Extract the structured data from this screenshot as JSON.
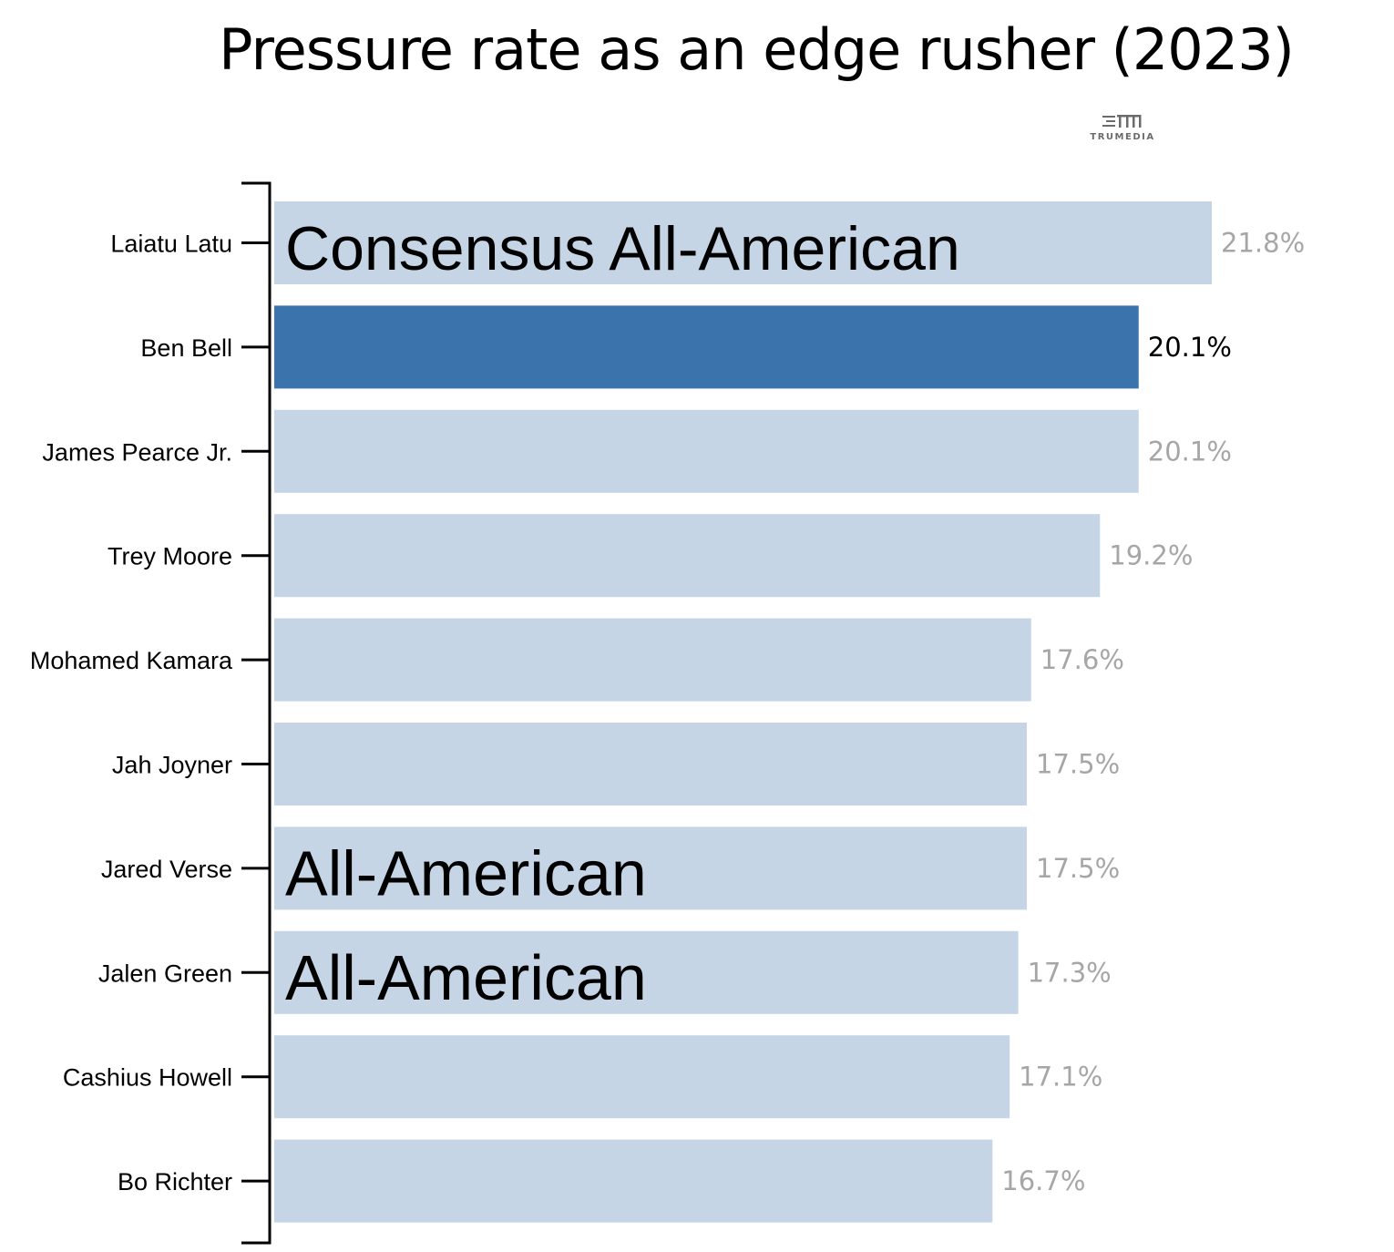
{
  "chart_data": {
    "type": "bar",
    "orientation": "horizontal",
    "title": "Pressure rate as an edge rusher (2023)",
    "source_logo": "TRUMEDIA",
    "categories": [
      "Laiatu Latu",
      "Ben Bell",
      "James Pearce Jr.",
      "Trey Moore",
      "Mohamed Kamara",
      "Jah Joyner",
      "Jared Verse",
      "Jalen Green",
      "Cashius Howell",
      "Bo Richter"
    ],
    "values": [
      21.8,
      20.1,
      20.1,
      19.2,
      17.6,
      17.5,
      17.5,
      17.3,
      17.1,
      16.7
    ],
    "value_labels": [
      "21.8%",
      "20.1%",
      "20.1%",
      "19.2%",
      "17.6%",
      "17.5%",
      "17.5%",
      "17.3%",
      "17.1%",
      "16.7%"
    ],
    "annotations": [
      "Consensus All-American",
      "",
      "",
      "",
      "",
      "",
      "All-American",
      "All-American",
      "",
      ""
    ],
    "highlight": "Ben Bell",
    "xlim": [
      0,
      21.8
    ],
    "grid": false,
    "legend": "none",
    "colors": {
      "bar": "#c5d5e6",
      "highlight": "#3b74ad",
      "value_label": "#a6a6a6",
      "highlight_value_label": "#000000"
    }
  }
}
